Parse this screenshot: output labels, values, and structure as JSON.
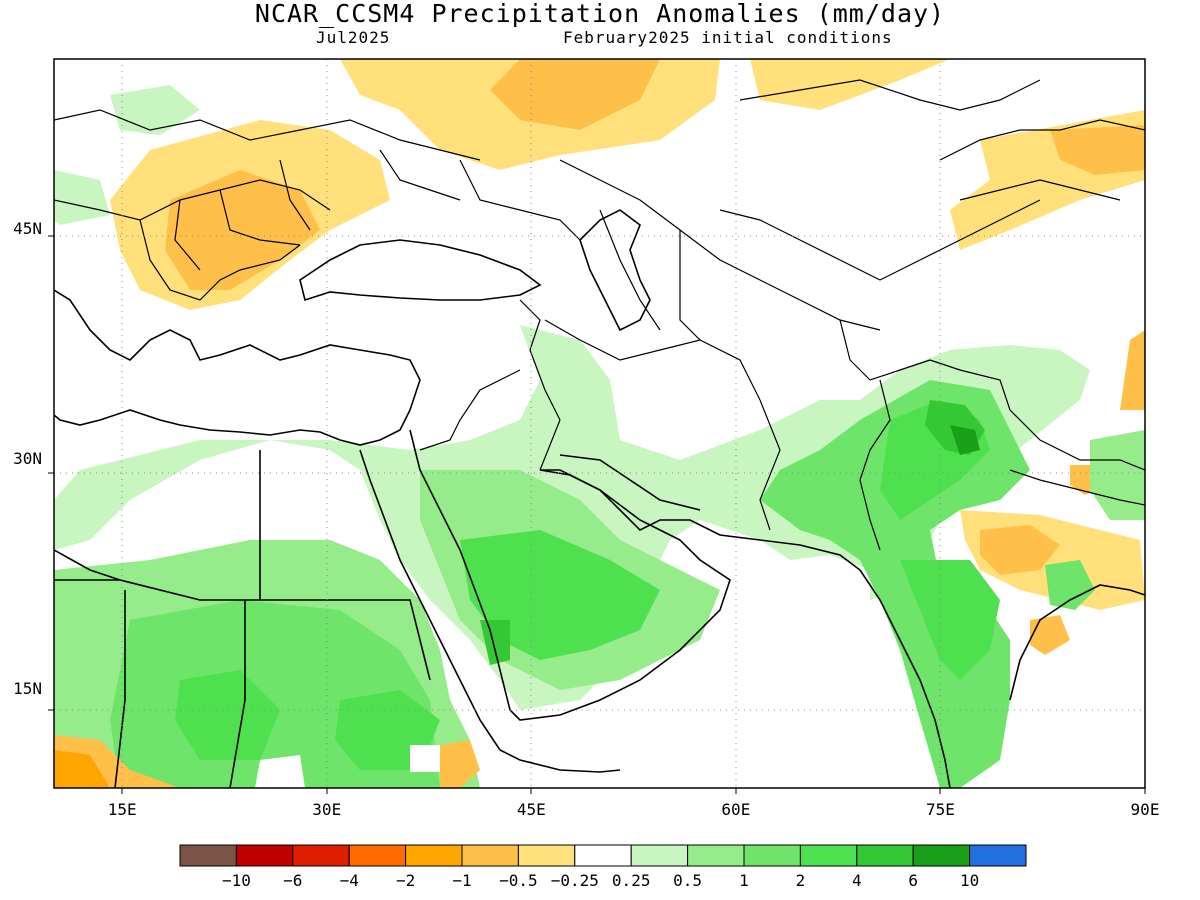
{
  "title": "NCAR_CCSM4 Precipitation Anomalies (mm/day)",
  "valid_month": "Jul2025",
  "initial_conditions": "February2025 initial conditions",
  "map": {
    "lon_range": [
      10,
      90
    ],
    "lat_range": [
      8.5,
      56
    ],
    "lon_ticks": [
      {
        "v": 15,
        "label": "15E"
      },
      {
        "v": 30,
        "label": "30E"
      },
      {
        "v": 45,
        "label": "45E"
      },
      {
        "v": 60,
        "label": "60E"
      },
      {
        "v": 75,
        "label": "75E"
      },
      {
        "v": 90,
        "label": "90E"
      }
    ],
    "lat_ticks": [
      {
        "v": 15,
        "label": "15N"
      },
      {
        "v": 30,
        "label": "30N"
      },
      {
        "v": 45,
        "label": "45N"
      }
    ],
    "grid": "dotted"
  },
  "colorbar": {
    "colors": [
      "#7b5448",
      "#c00000",
      "#e01e00",
      "#ff6a00",
      "#ffa500",
      "#ffc04a",
      "#ffe07a",
      "#ffffff",
      "#c8f5c0",
      "#96ec8a",
      "#6ee46a",
      "#4ee04e",
      "#34c834",
      "#18a018",
      "#2070e0"
    ],
    "labels": [
      "−10",
      "−6",
      "−4",
      "−2",
      "−1",
      "−0.5",
      "−0.25",
      "0.25",
      "0.5",
      "1",
      "2",
      "4",
      "6",
      "10"
    ]
  }
}
